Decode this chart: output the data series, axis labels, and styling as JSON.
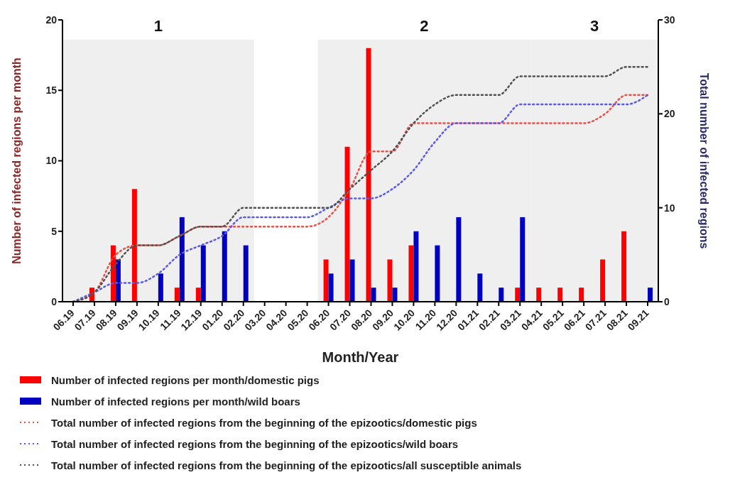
{
  "chart_data": {
    "type": "bar",
    "xlabel": "Month/Year",
    "ylabel": "Number of infected regions per month",
    "y2label": "Total number of infected regions",
    "categories": [
      "06.19",
      "07.19",
      "08.19",
      "09.19",
      "10.19",
      "11.19",
      "12.19",
      "01.20",
      "02.20",
      "03.20",
      "04.20",
      "05.20",
      "06.20",
      "07.20",
      "08.20",
      "09.20",
      "10.20",
      "11.20",
      "12.20",
      "01.21",
      "02.21",
      "03.21",
      "04.21",
      "05.21",
      "06.21",
      "07.21",
      "08.21",
      "09.21"
    ],
    "series": [
      {
        "name": "Number of infected regions per month/domestic pigs",
        "color": "#ff0000",
        "values": [
          0,
          1,
          4,
          8,
          0,
          1,
          1,
          0,
          0,
          0,
          0,
          0,
          3,
          11,
          18,
          3,
          4,
          0,
          0,
          0,
          0,
          1,
          1,
          1,
          1,
          3,
          5,
          0
        ]
      },
      {
        "name": "Number of infected regions per month/wild boars",
        "color": "#0000c0",
        "values": [
          0,
          0,
          3,
          0,
          2,
          6,
          4,
          5,
          4,
          0,
          0,
          0,
          2,
          3,
          1,
          1,
          5,
          4,
          6,
          2,
          1,
          6,
          0,
          0,
          0,
          0,
          0,
          1
        ]
      },
      {
        "name": "Total number of infected regions from the beginning of the epizootics/domestic pigs",
        "type": "line",
        "axis": "y2",
        "color": "#e8504a",
        "values": [
          0,
          1,
          5,
          6,
          6,
          7,
          8,
          8,
          8,
          8,
          8,
          8,
          9,
          12,
          16,
          16,
          19,
          19,
          19,
          19,
          19,
          19,
          19,
          19,
          19,
          20,
          22,
          22
        ]
      },
      {
        "name": "Total number of infected regions from the beginning of the epizootics/wild boars",
        "type": "line",
        "axis": "y2",
        "color": "#5a5ae6",
        "values": [
          0,
          1,
          2,
          2,
          3,
          5,
          6,
          7,
          9,
          9,
          9,
          9,
          10,
          11,
          11,
          12,
          14,
          17,
          19,
          19,
          19,
          21,
          21,
          21,
          21,
          21,
          21,
          22
        ]
      },
      {
        "name": "Total number of infected regions from the beginning of the epizootics/all susceptible animals",
        "type": "line",
        "axis": "y2",
        "color": "#505050",
        "values": [
          0,
          1,
          4,
          6,
          6,
          7,
          8,
          8,
          10,
          10,
          10,
          10,
          10,
          12,
          14,
          16,
          19,
          21,
          22,
          22,
          22,
          24,
          24,
          24,
          24,
          24,
          25,
          25
        ]
      }
    ],
    "ylim": [
      0,
      20
    ],
    "yticks": [
      0,
      5,
      10,
      15,
      20
    ],
    "y2lim": [
      0,
      30
    ],
    "y2ticks": [
      0,
      10,
      20,
      30
    ],
    "bands": [
      {
        "axis": "x",
        "from": "06.19",
        "to": "02.20",
        "label": "1",
        "color": "#e4e4e4"
      },
      {
        "axis": "x",
        "from": "06.20",
        "to": "03.21",
        "label": "2",
        "color": "#e4e4e4"
      },
      {
        "axis": "x",
        "from": "04.21",
        "to": "09.21",
        "label": "3",
        "color": "#e4e4e4"
      }
    ],
    "grid": false,
    "legend": "bottom",
    "marker": "none",
    "line_style": "dotted"
  }
}
